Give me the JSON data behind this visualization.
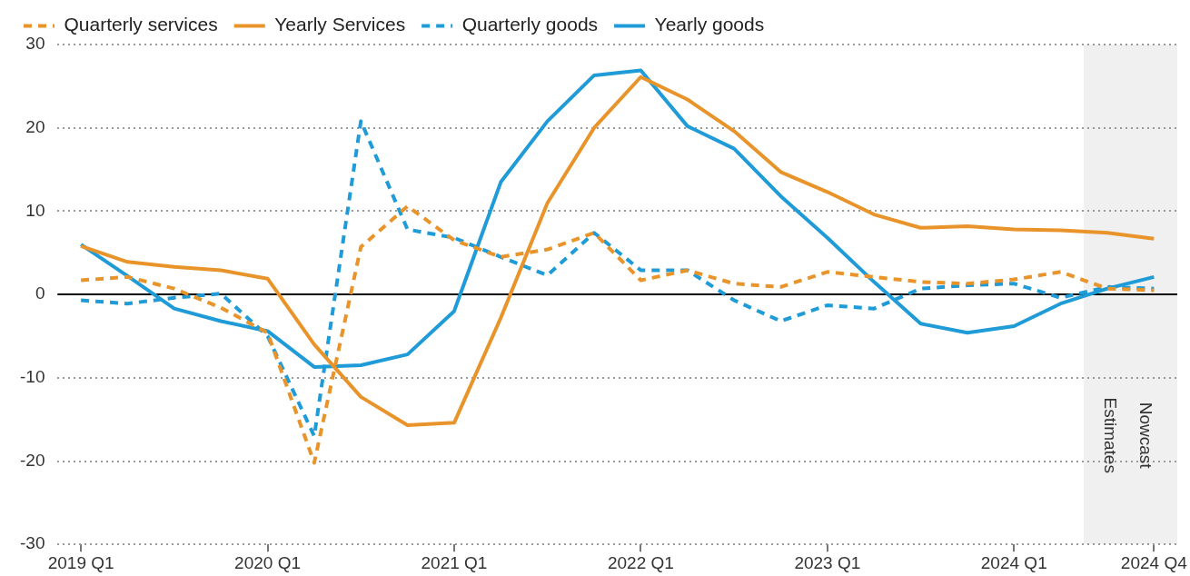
{
  "chart_data": {
    "type": "line",
    "categories": [
      "2019 Q1",
      null,
      null,
      null,
      "2020 Q1",
      null,
      null,
      null,
      "2021 Q1",
      null,
      null,
      null,
      "2022 Q1",
      null,
      null,
      null,
      "2023 Q1",
      null,
      null,
      null,
      "2024 Q1",
      null,
      null,
      "2024 Q4"
    ],
    "series": [
      {
        "name": "Quarterly services",
        "color": "#e8942a",
        "line_style": "dashed",
        "values": [
          1.7,
          2.1,
          0.7,
          -1.6,
          -4.6,
          -20.2,
          5.7,
          10.6,
          6.5,
          4.5,
          5.4,
          7.4,
          1.7,
          2.9,
          1.3,
          0.9,
          2.7,
          2.1,
          1.5,
          1.3,
          1.8,
          2.7,
          0.7,
          0.5
        ]
      },
      {
        "name": "Yearly Services",
        "color": "#e8942a",
        "line_style": "solid",
        "values": [
          5.8,
          3.9,
          3.3,
          2.9,
          1.9,
          -6,
          -12.3,
          -15.7,
          -15.4,
          -2.8,
          11,
          20,
          26.1,
          23.4,
          19.6,
          14.7,
          12.3,
          9.6,
          8,
          8.2,
          7.8,
          7.7,
          7.4,
          6.7
        ]
      },
      {
        "name": "Quarterly goods",
        "color": "#1f9bd7",
        "line_style": "dashed",
        "values": [
          -0.7,
          -1.1,
          -0.4,
          0.1,
          -5,
          -17,
          20.8,
          7.8,
          6.8,
          4.5,
          2.3,
          7.4,
          2.9,
          2.9,
          -0.7,
          -3.2,
          -1.3,
          -1.7,
          0.7,
          1.1,
          1.3,
          -0.4,
          0.9,
          0.7
        ]
      },
      {
        "name": "Yearly goods",
        "color": "#1f9bd7",
        "line_style": "solid",
        "values": [
          6,
          2.2,
          -1.7,
          -3.2,
          -4.4,
          -8.7,
          -8.5,
          -7.2,
          -2,
          13.5,
          20.8,
          26.3,
          26.9,
          20.2,
          17.5,
          11.8,
          6.8,
          1.5,
          -3.5,
          -4.6,
          -3.8,
          -1.1,
          0.7,
          2.1
        ]
      }
    ],
    "ylim": [
      -30,
      30
    ],
    "yticks": [
      -30,
      -20,
      -10,
      0,
      10,
      20,
      30
    ],
    "ref_lines": [
      {
        "axis": "y",
        "value": 0,
        "color": "#000000"
      }
    ],
    "annotations": [
      "Estimates",
      "Nowcast"
    ],
    "grid": "y",
    "legend": "top left",
    "marker": "none"
  }
}
